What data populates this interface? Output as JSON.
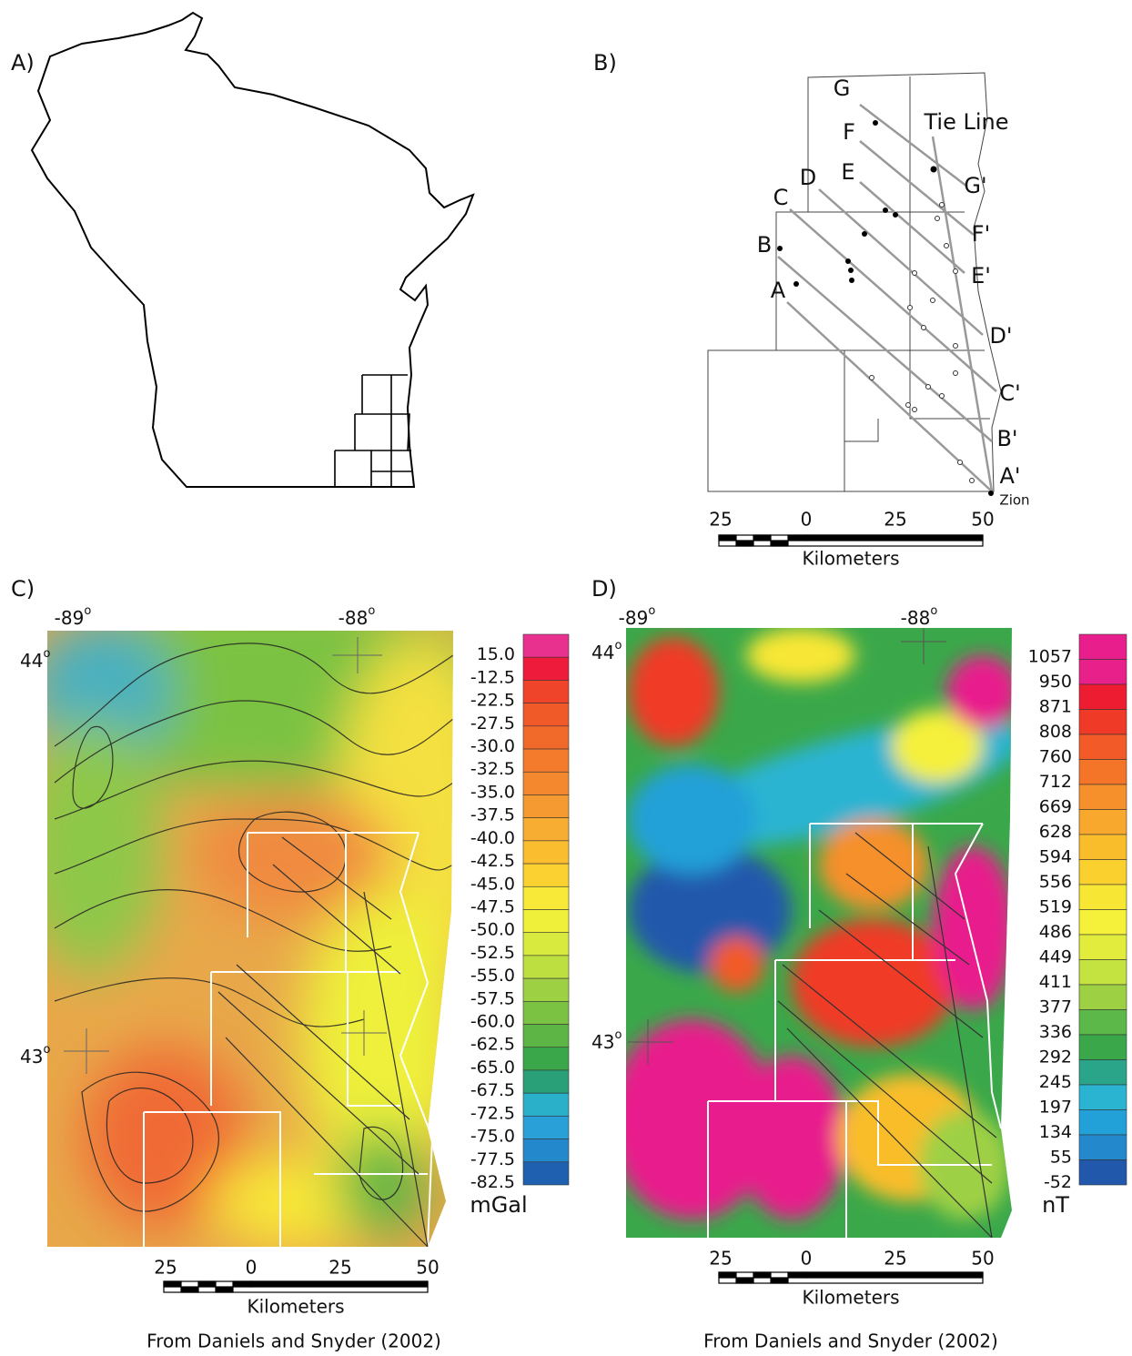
{
  "panel_a": {
    "label": "A)"
  },
  "panel_b": {
    "label": "B)",
    "profile_start_labels": [
      "G",
      "F",
      "E",
      "D",
      "C",
      "B",
      "A"
    ],
    "profile_end_labels": [
      "G'",
      "F'",
      "E'",
      "D'",
      "C'",
      "B'",
      "A'"
    ],
    "tie_line_label": "Tie Line",
    "station_label": "Zion",
    "scale": {
      "ticks": [
        "25",
        "0",
        "25",
        "50"
      ],
      "unit": "Kilometers"
    }
  },
  "panel_c": {
    "label": "C)",
    "longitudes": [
      {
        "text": "-89",
        "sup": "o"
      },
      {
        "text": "-88",
        "sup": "o"
      }
    ],
    "latitudes": [
      {
        "text": "44",
        "sup": "o"
      },
      {
        "text": "43",
        "sup": "o"
      }
    ],
    "colorbar": {
      "labels": [
        "15.0",
        "-12.5",
        "-22.5",
        "-27.5",
        "-30.0",
        "-32.5",
        "-35.0",
        "-37.5",
        "-40.0",
        "-42.5",
        "-45.0",
        "-47.5",
        "-50.0",
        "-52.5",
        "-55.0",
        "-57.5",
        "-60.0",
        "-62.5",
        "-65.0",
        "-67.5",
        "-72.5",
        "-75.0",
        "-77.5",
        "-82.5"
      ],
      "colors": [
        "#e8308f",
        "#ee1c3a",
        "#f0442a",
        "#f05a28",
        "#f26a2a",
        "#f47b2c",
        "#f4882e",
        "#f59a30",
        "#f7ac32",
        "#f9bd2f",
        "#fad130",
        "#f8e838",
        "#eef03a",
        "#d9ea3e",
        "#bde040",
        "#9ed044",
        "#7cc242",
        "#5db545",
        "#3aa84a",
        "#2aa078",
        "#2ab0c8",
        "#2aa0d8",
        "#2488cc",
        "#2060b0"
      ],
      "unit": "mGal"
    },
    "scale": {
      "ticks": [
        "25",
        "0",
        "25",
        "50"
      ],
      "unit": "Kilometers"
    },
    "credit": "From Daniels and Snyder (2002)"
  },
  "panel_d": {
    "label": "D)",
    "longitudes": [
      {
        "text": "-89",
        "sup": "o"
      },
      {
        "text": "-88",
        "sup": "o"
      }
    ],
    "latitudes": [
      {
        "text": "44",
        "sup": "o"
      },
      {
        "text": "43",
        "sup": "o"
      }
    ],
    "colorbar": {
      "labels": [
        "1057",
        "950",
        "871",
        "808",
        "760",
        "712",
        "669",
        "628",
        "594",
        "556",
        "519",
        "486",
        "449",
        "411",
        "377",
        "336",
        "292",
        "245",
        "197",
        "134",
        "55",
        "-52"
      ],
      "colors": [
        "#e81e8c",
        "#e8208a",
        "#ee1c30",
        "#f03a28",
        "#f25a28",
        "#f47428",
        "#f6902a",
        "#f8a82c",
        "#f9bd2c",
        "#fad02e",
        "#f7e634",
        "#f5f03a",
        "#e2ec3c",
        "#c4e240",
        "#9ed044",
        "#5cb848",
        "#3aa84a",
        "#2aa58a",
        "#2ab4d2",
        "#22a0d8",
        "#2488cc",
        "#2258ac"
      ],
      "unit": "nT"
    },
    "scale": {
      "ticks": [
        "25",
        "0",
        "25",
        "50"
      ],
      "unit": "Kilometers"
    },
    "credit": "From Daniels and Snyder (2002)"
  }
}
